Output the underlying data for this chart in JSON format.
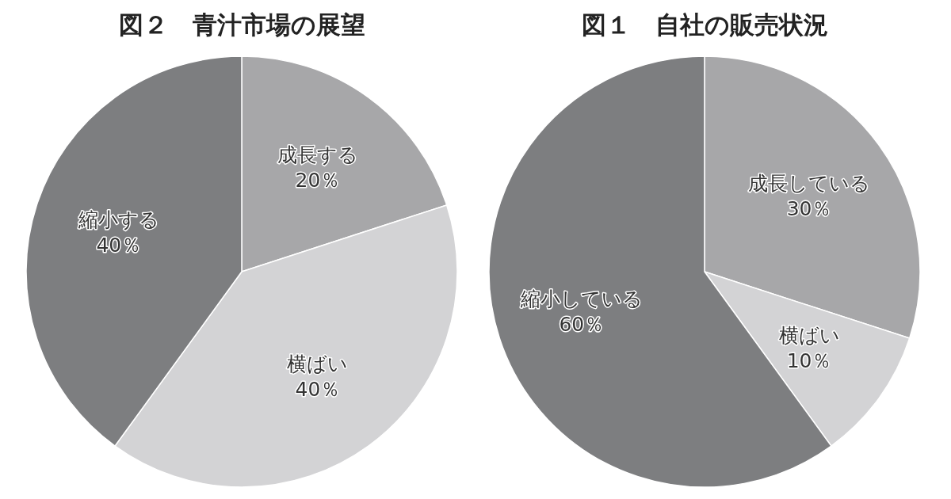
{
  "chart_data": [
    {
      "type": "pie",
      "title": "図２　青汁市場の展望",
      "categories": [
        "成長する",
        "横ばい",
        "縮小する"
      ],
      "values": [
        20,
        40,
        40
      ],
      "value_labels": [
        "20％",
        "40％",
        "40％"
      ],
      "colors": [
        "#a7a7a9",
        "#d3d3d5",
        "#7d7e80"
      ]
    },
    {
      "type": "pie",
      "title": "図１　自社の販売状況",
      "categories": [
        "成長している",
        "横ばい",
        "縮小している"
      ],
      "values": [
        30,
        10,
        60
      ],
      "value_labels": [
        "30％",
        "10％",
        "60％"
      ],
      "colors": [
        "#a7a7a9",
        "#d3d3d5",
        "#7d7e80"
      ]
    }
  ]
}
